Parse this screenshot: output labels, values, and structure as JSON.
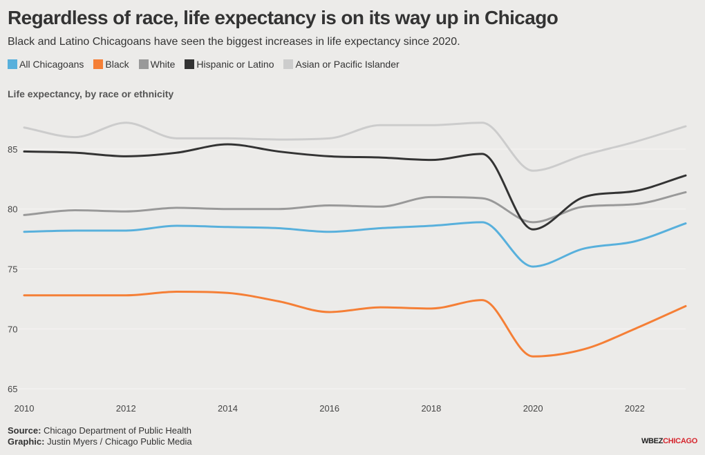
{
  "title": "Regardless of race, life expectancy is on its way up in Chicago",
  "subtitle": "Black and Latino Chicagoans have seen the biggest increases in life expectancy since 2020.",
  "chart_label": "Life expectancy, by race or ethnicity",
  "footer": {
    "source_label": "Source:",
    "source_text": "Chicago Department of Public Health",
    "graphic_label": "Graphic:",
    "graphic_text": "Justin Myers / Chicago Public Media"
  },
  "brand": {
    "part1": "WBEZ",
    "part2": "CHICAGO"
  },
  "colors": {
    "background": "#ecebe9",
    "grid": "#f7f6f4",
    "text": "#333333"
  },
  "chart_data": {
    "type": "line",
    "title": "Regardless of race, life expectancy is on its way up in Chicago",
    "subtitle": "Black and Latino Chicagoans have seen the biggest increases in life expectancy since 2020.",
    "ylabel": "Life expectancy, by race or ethnicity",
    "xlabel": "",
    "x": [
      2010,
      2011,
      2012,
      2013,
      2014,
      2015,
      2016,
      2017,
      2018,
      2019,
      2020,
      2021,
      2022,
      2023
    ],
    "xlim": [
      2010,
      2023
    ],
    "ylim": [
      64.2,
      88.8
    ],
    "x_ticks": [
      2010,
      2012,
      2014,
      2016,
      2018,
      2020,
      2022
    ],
    "y_ticks": [
      65,
      70,
      75,
      80,
      85
    ],
    "grid": true,
    "legend_position": "top-left",
    "series": [
      {
        "name": "Asian or Pacific Islander",
        "color": "#cccccc",
        "values": [
          86.8,
          86.0,
          87.2,
          85.9,
          85.9,
          85.8,
          85.9,
          87.0,
          87.0,
          87.2,
          83.2,
          84.5,
          85.6,
          86.9
        ]
      },
      {
        "name": "White",
        "color": "#999999",
        "values": [
          79.5,
          79.9,
          79.8,
          80.1,
          80.0,
          80.0,
          80.3,
          80.2,
          81.0,
          80.9,
          78.9,
          80.2,
          80.4,
          81.4
        ]
      },
      {
        "name": "All Chicagoans",
        "color": "#58b0dc",
        "values": [
          78.1,
          78.2,
          78.2,
          78.6,
          78.5,
          78.4,
          78.1,
          78.4,
          78.6,
          78.9,
          75.2,
          76.7,
          77.3,
          78.8
        ]
      },
      {
        "name": "Black",
        "color": "#f57f36",
        "values": [
          72.8,
          72.8,
          72.8,
          73.1,
          73.0,
          72.3,
          71.4,
          71.8,
          71.7,
          72.4,
          67.7,
          68.3,
          70.0,
          71.9
        ]
      },
      {
        "name": "Hispanic or Latino",
        "color": "#333333",
        "values": [
          84.8,
          84.7,
          84.4,
          84.7,
          85.4,
          84.8,
          84.4,
          84.3,
          84.1,
          84.6,
          78.3,
          81.0,
          81.5,
          82.8
        ]
      }
    ],
    "legend_order": [
      "All Chicagoans",
      "Black",
      "White",
      "Hispanic or Latino",
      "Asian or Pacific Islander"
    ]
  }
}
